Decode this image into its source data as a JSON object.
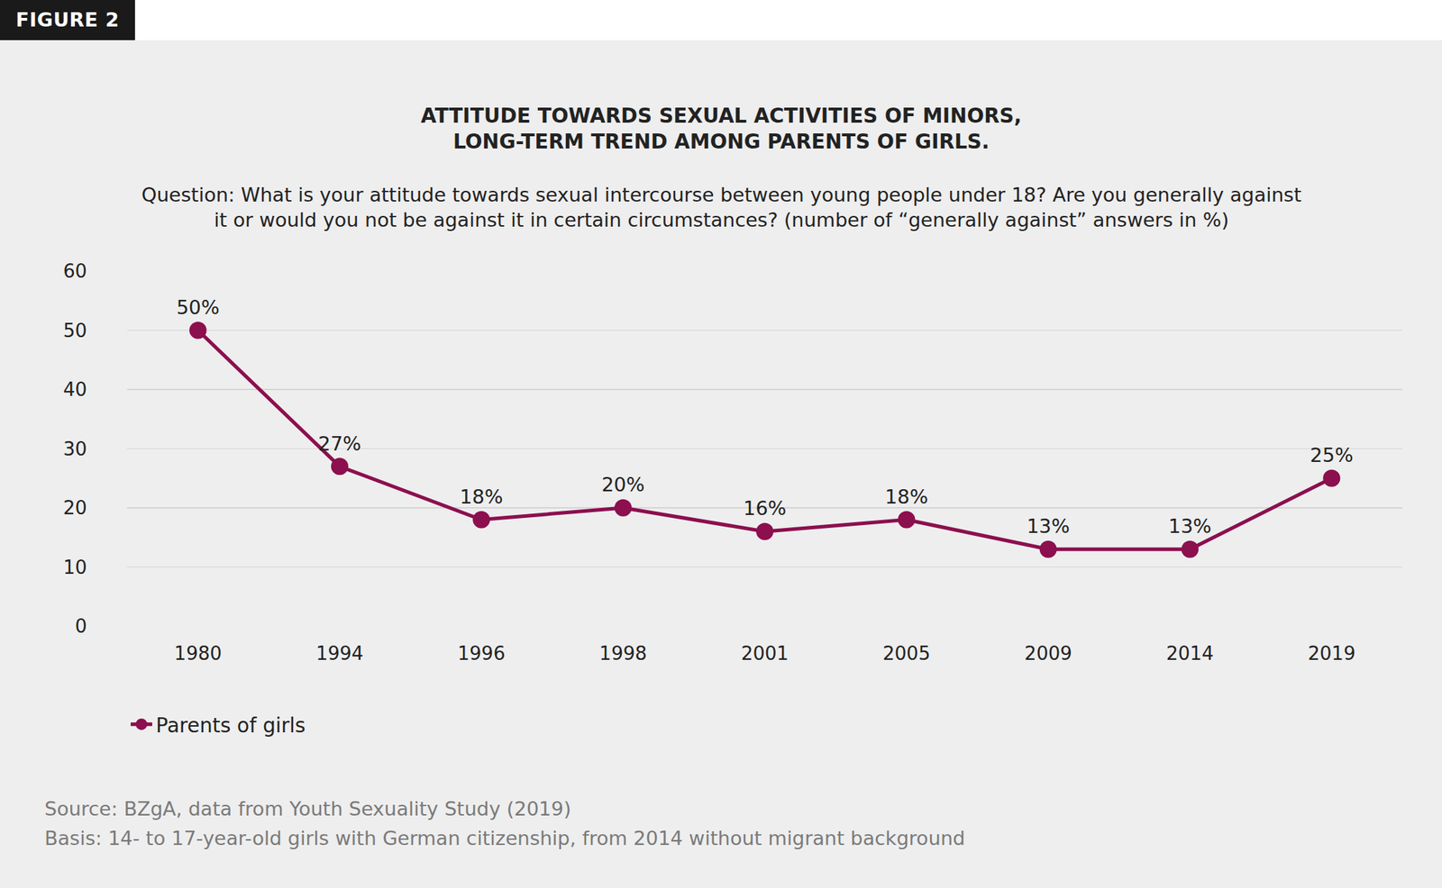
{
  "chart_data": {
    "type": "line",
    "figure_label": "FIGURE 2",
    "title": "ATTITUDE TOWARDS SEXUAL ACTIVITIES OF MINORS,\nLONG-TERM TREND AMONG PARENTS OF GIRLS.",
    "subtitle": "Question: What is your attitude towards sexual intercourse between young people under 18? Are you generally against\nit or would you not be against it in certain circumstances? (number of “generally against” answers in %)",
    "categories": [
      "1980",
      "1994",
      "1996",
      "1998",
      "2001",
      "2005",
      "2009",
      "2014",
      "2019"
    ],
    "series": [
      {
        "name": "Parents of girls",
        "color": "#8c0f4e",
        "values": [
          50,
          27,
          18,
          20,
          16,
          18,
          13,
          13,
          25
        ],
        "value_labels": [
          "50%",
          "27%",
          "18%",
          "20%",
          "16%",
          "18%",
          "13%",
          "13%",
          "25%"
        ]
      }
    ],
    "ylim": [
      0,
      60
    ],
    "yticks": [
      0,
      10,
      20,
      30,
      40,
      50,
      60
    ],
    "grid": true,
    "data_labels": true,
    "legend": "bottom left",
    "marker": "circle",
    "line_style": "solid",
    "source": "Source: BZgA, data from Youth Sexuality Study (2019)",
    "basis": "Basis: 14- to 17-year-old girls with German citizenship, from 2014 without migrant background"
  }
}
